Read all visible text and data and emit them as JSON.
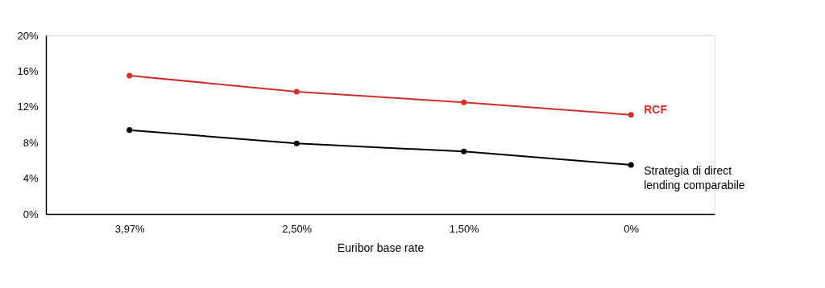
{
  "chart_data": {
    "type": "line",
    "xlabel": "Euribor base rate",
    "categories": [
      "3,97%",
      "2,50%",
      "1,50%",
      "0%"
    ],
    "series": [
      {
        "name": "RCF",
        "color": "#d0302b",
        "values": [
          15.5,
          13.7,
          12.5,
          11.1
        ]
      },
      {
        "name": "Strategia di direct lending comparabile",
        "color": "#000000",
        "values": [
          9.4,
          7.9,
          7.0,
          5.5
        ]
      }
    ],
    "ylim": [
      0,
      20
    ],
    "yticks": [
      {
        "value": 0,
        "label": "0%"
      },
      {
        "value": 4,
        "label": "4%"
      },
      {
        "value": 8,
        "label": "8%"
      },
      {
        "value": 12,
        "label": "12%"
      },
      {
        "value": 16,
        "label": "16%"
      },
      {
        "value": 20,
        "label": "20%"
      }
    ],
    "marker": "circle",
    "line_style": "solid",
    "grid": false
  }
}
